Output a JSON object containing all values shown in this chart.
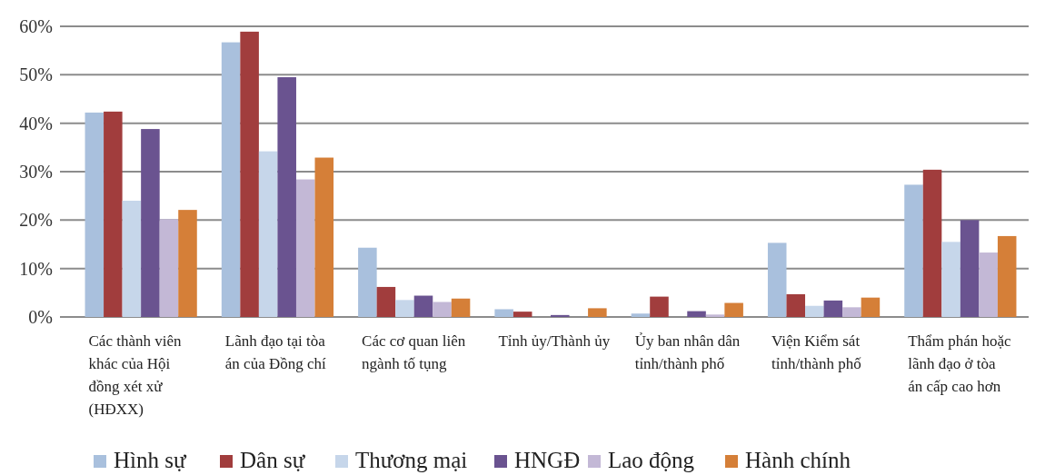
{
  "chart_data": {
    "type": "bar",
    "categories": [
      "Các thành viên khác của Hội đồng xét xử (HĐXX)",
      "Lãnh đạo tại tòa án của Đồng chí",
      "Các cơ quan liên ngành tố tụng",
      "Tỉnh ủy/Thành ủy",
      "Ủy ban nhân dân tỉnh/thành phố",
      "Viện Kiểm sát tỉnh/thành phố",
      "Thẩm phán hoặc lãnh đạo ở tòa án cấp cao hơn"
    ],
    "series": [
      {
        "name": "Hình sự",
        "color": "#a9c0dd",
        "values": [
          42.2,
          56.7,
          14.3,
          1.6,
          0.7,
          15.3,
          27.3
        ]
      },
      {
        "name": "Dân sự",
        "color": "#a13d3d",
        "values": [
          42.4,
          58.9,
          6.2,
          1.1,
          4.2,
          4.7,
          30.4
        ]
      },
      {
        "name": "Thương mại",
        "color": "#c6d6ea",
        "values": [
          24,
          34.2,
          3.5,
          null,
          null,
          2.3,
          15.5
        ]
      },
      {
        "name": "HNGĐ",
        "color": "#6a5390",
        "values": [
          38.8,
          49.5,
          4.4,
          0.4,
          1.2,
          3.4,
          20
        ]
      },
      {
        "name": "Lao động",
        "color": "#c3b8d6",
        "values": [
          20.2,
          28.4,
          3.1,
          null,
          0.5,
          2,
          13.3
        ]
      },
      {
        "name": "Hành chính",
        "color": "#d57f38",
        "values": [
          22.1,
          32.9,
          3.8,
          1.8,
          2.9,
          4,
          16.7
        ]
      }
    ],
    "ylim": [
      0,
      60
    ],
    "yticks": [
      {
        "value": 0,
        "label": "0%"
      },
      {
        "value": 10,
        "label": "10%"
      },
      {
        "value": 20,
        "label": "20%"
      },
      {
        "value": 30,
        "label": "30%"
      },
      {
        "value": 40,
        "label": "40%"
      },
      {
        "value": 50,
        "label": "50%"
      },
      {
        "value": 60,
        "label": "60%"
      }
    ],
    "grid": "y",
    "legend": "bottom"
  }
}
